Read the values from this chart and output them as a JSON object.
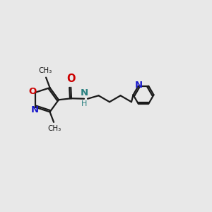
{
  "background_color": "#e8e8e8",
  "bond_color": "#1a1a1a",
  "O_color": "#cc0000",
  "N_color": "#1a1acc",
  "NH_color": "#2a8080",
  "font_size": 9.5,
  "lw": 1.6,
  "fig_size": [
    3.0,
    3.0
  ],
  "dpi": 100,
  "xlim": [
    -1,
    11
  ],
  "ylim": [
    1,
    9
  ]
}
